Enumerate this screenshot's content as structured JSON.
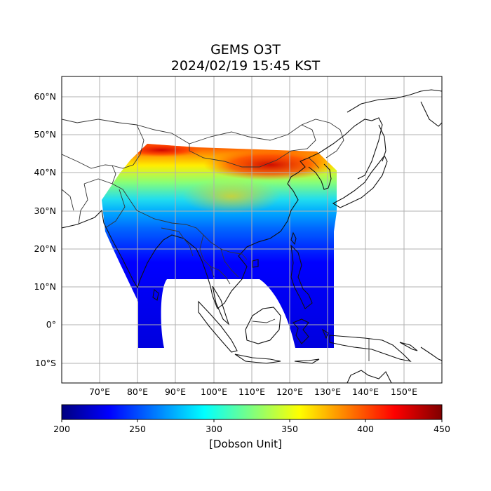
{
  "map": {
    "title_line1": "GEMS O3T",
    "title_line2": "2024/02/19 15:45 KST",
    "lat_ticks": [
      "60°N",
      "50°N",
      "40°N",
      "30°N",
      "20°N",
      "10°N",
      "0°",
      "10°S"
    ],
    "lon_ticks": [
      "70°E",
      "80°E",
      "90°E",
      "100°E",
      "110°E",
      "120°E",
      "130°E",
      "140°E",
      "150°E"
    ],
    "extent": {
      "lon_min": 60,
      "lon_max": 160,
      "lat_min": -15,
      "lat_max": 65
    },
    "gridlines": true,
    "coastlines": true,
    "country_borders": true
  },
  "colorbar": {
    "label": "[Dobson Unit]",
    "ticks": [
      "200",
      "250",
      "300",
      "350",
      "400",
      "450"
    ],
    "min": 200,
    "max": 450,
    "colormap": "jet",
    "colors": [
      "#00007f",
      "#0000ff",
      "#007fff",
      "#00ffff",
      "#7fff7f",
      "#ffff00",
      "#ff7f00",
      "#ff0000",
      "#7f0000"
    ]
  }
}
